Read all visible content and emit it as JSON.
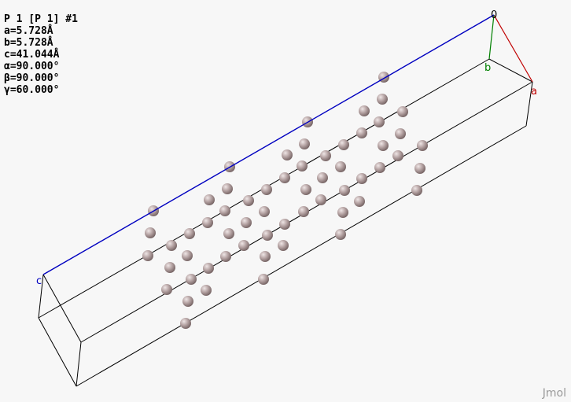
{
  "structure_info": {
    "title": "P 1 [P 1] #1",
    "a": "a=5.728Å",
    "b": "b=5.728Å",
    "c": "c=41.044Å",
    "alpha": "α=90.000°",
    "beta": "β=90.000°",
    "gamma": "γ=60.000°"
  },
  "axes": {
    "origin": "0",
    "a": "a",
    "b": "b",
    "c": "c"
  },
  "colors": {
    "background": "#f7f7f7",
    "atom": "#a08f8f",
    "cell_edge": "#000000",
    "axis_a": "#c00000",
    "axis_b": "#008000",
    "axis_c": "#0000c0"
  },
  "watermark": "Jmol"
}
